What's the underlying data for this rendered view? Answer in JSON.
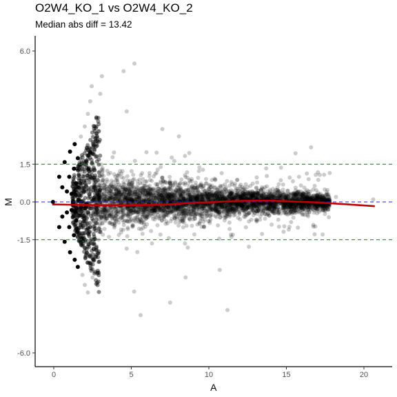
{
  "chart_data": {
    "type": "scatter",
    "title": "O2W4_KO_1 vs O2W4_KO_2",
    "subtitle": "Median abs diff = 13.42",
    "xlabel": "A",
    "ylabel": "M",
    "xlim": [
      -1.2,
      21.8
    ],
    "ylim": [
      -6.5,
      6.6
    ],
    "xticks": [
      0,
      5,
      10,
      15,
      20
    ],
    "xtick_labels": [
      "0",
      "5",
      "10",
      "15",
      "20"
    ],
    "yticks": [
      6.0,
      1.5,
      0.0,
      -1.5,
      -6.0
    ],
    "ytick_labels": [
      "6.0",
      "1.5",
      "0.0",
      "-1.5",
      "-6.0"
    ],
    "reference_lines": [
      {
        "y": 1.5,
        "color": "#1a6e1a",
        "style": "dashed"
      },
      {
        "y": 0.0,
        "color": "#2020d0",
        "style": "dashed"
      },
      {
        "y": -1.5,
        "color": "#1a6e1a",
        "style": "dashed"
      }
    ],
    "point_color": "#000000",
    "point_opacity": 0.2,
    "loess_color": "#c00000",
    "loess_curve": {
      "x": [
        -0.1,
        1,
        2,
        3,
        4,
        5,
        6,
        7,
        7.8,
        9,
        10,
        11,
        12,
        13,
        14,
        15,
        16,
        17,
        18,
        19,
        20,
        20.7
      ],
      "y": [
        -0.1,
        -0.11,
        -0.12,
        -0.13,
        -0.13,
        -0.13,
        -0.12,
        -0.11,
        -0.08,
        -0.03,
        -0.02,
        0.02,
        0.04,
        0.05,
        0.05,
        0.03,
        0.0,
        -0.02,
        -0.06,
        -0.1,
        -0.14,
        -0.17
      ]
    },
    "discrete_points": [
      {
        "x": -0.05,
        "y": 0.0
      },
      {
        "x": 0.35,
        "y": 1.0
      },
      {
        "x": 0.35,
        "y": -1.0
      },
      {
        "x": 0.55,
        "y": 0.58
      },
      {
        "x": 0.55,
        "y": -0.58
      },
      {
        "x": 0.7,
        "y": 1.58
      },
      {
        "x": 0.7,
        "y": -1.58
      },
      {
        "x": 0.85,
        "y": 0.42
      },
      {
        "x": 0.85,
        "y": -0.42
      },
      {
        "x": 1.0,
        "y": 1.0
      },
      {
        "x": 1.0,
        "y": -1.0
      },
      {
        "x": 1.05,
        "y": 2.0
      },
      {
        "x": 1.05,
        "y": -2.0
      },
      {
        "x": 1.15,
        "y": 0.32
      },
      {
        "x": 1.15,
        "y": -0.32
      },
      {
        "x": 1.3,
        "y": 1.32
      },
      {
        "x": 1.3,
        "y": -1.32
      },
      {
        "x": 1.35,
        "y": 2.3
      },
      {
        "x": 1.35,
        "y": -2.3
      },
      {
        "x": 1.45,
        "y": 0.74
      },
      {
        "x": 1.45,
        "y": -0.74
      },
      {
        "x": 1.55,
        "y": 1.74
      },
      {
        "x": 1.55,
        "y": -2.58
      },
      {
        "x": 1.65,
        "y": 0.26
      },
      {
        "x": 1.65,
        "y": -0.26
      },
      {
        "x": 1.75,
        "y": 2.6
      },
      {
        "x": 1.75,
        "y": -1.58
      },
      {
        "x": 1.85,
        "y": 1.17
      },
      {
        "x": 1.85,
        "y": -2.9
      },
      {
        "x": 2.0,
        "y": 3.0
      },
      {
        "x": 2.0,
        "y": -3.3
      },
      {
        "x": 2.1,
        "y": 0.6
      },
      {
        "x": 2.1,
        "y": -0.9
      },
      {
        "x": 2.2,
        "y": 3.5
      },
      {
        "x": 2.2,
        "y": -3.6
      },
      {
        "x": 2.35,
        "y": 4.0
      },
      {
        "x": 2.35,
        "y": 2.1
      },
      {
        "x": 2.45,
        "y": 4.6
      },
      {
        "x": 2.5,
        "y": -3.0
      },
      {
        "x": 3.0,
        "y": 4.3
      },
      {
        "x": 3.1,
        "y": 5.0
      },
      {
        "x": 2.9,
        "y": 2.8
      },
      {
        "x": 4.5,
        "y": 5.2
      },
      {
        "x": 5.2,
        "y": 5.5
      },
      {
        "x": 4.7,
        "y": 3.6
      },
      {
        "x": 7.0,
        "y": 2.9
      },
      {
        "x": 8.5,
        "y": -3.0
      },
      {
        "x": 10.7,
        "y": -2.7
      },
      {
        "x": 7.5,
        "y": -4.0
      },
      {
        "x": 11.2,
        "y": -4.3
      },
      {
        "x": 5.6,
        "y": -4.5
      },
      {
        "x": 15.3,
        "y": -0.8
      },
      {
        "x": 20.6,
        "y": 0.1
      },
      {
        "x": 18.2,
        "y": 0.2
      }
    ]
  }
}
